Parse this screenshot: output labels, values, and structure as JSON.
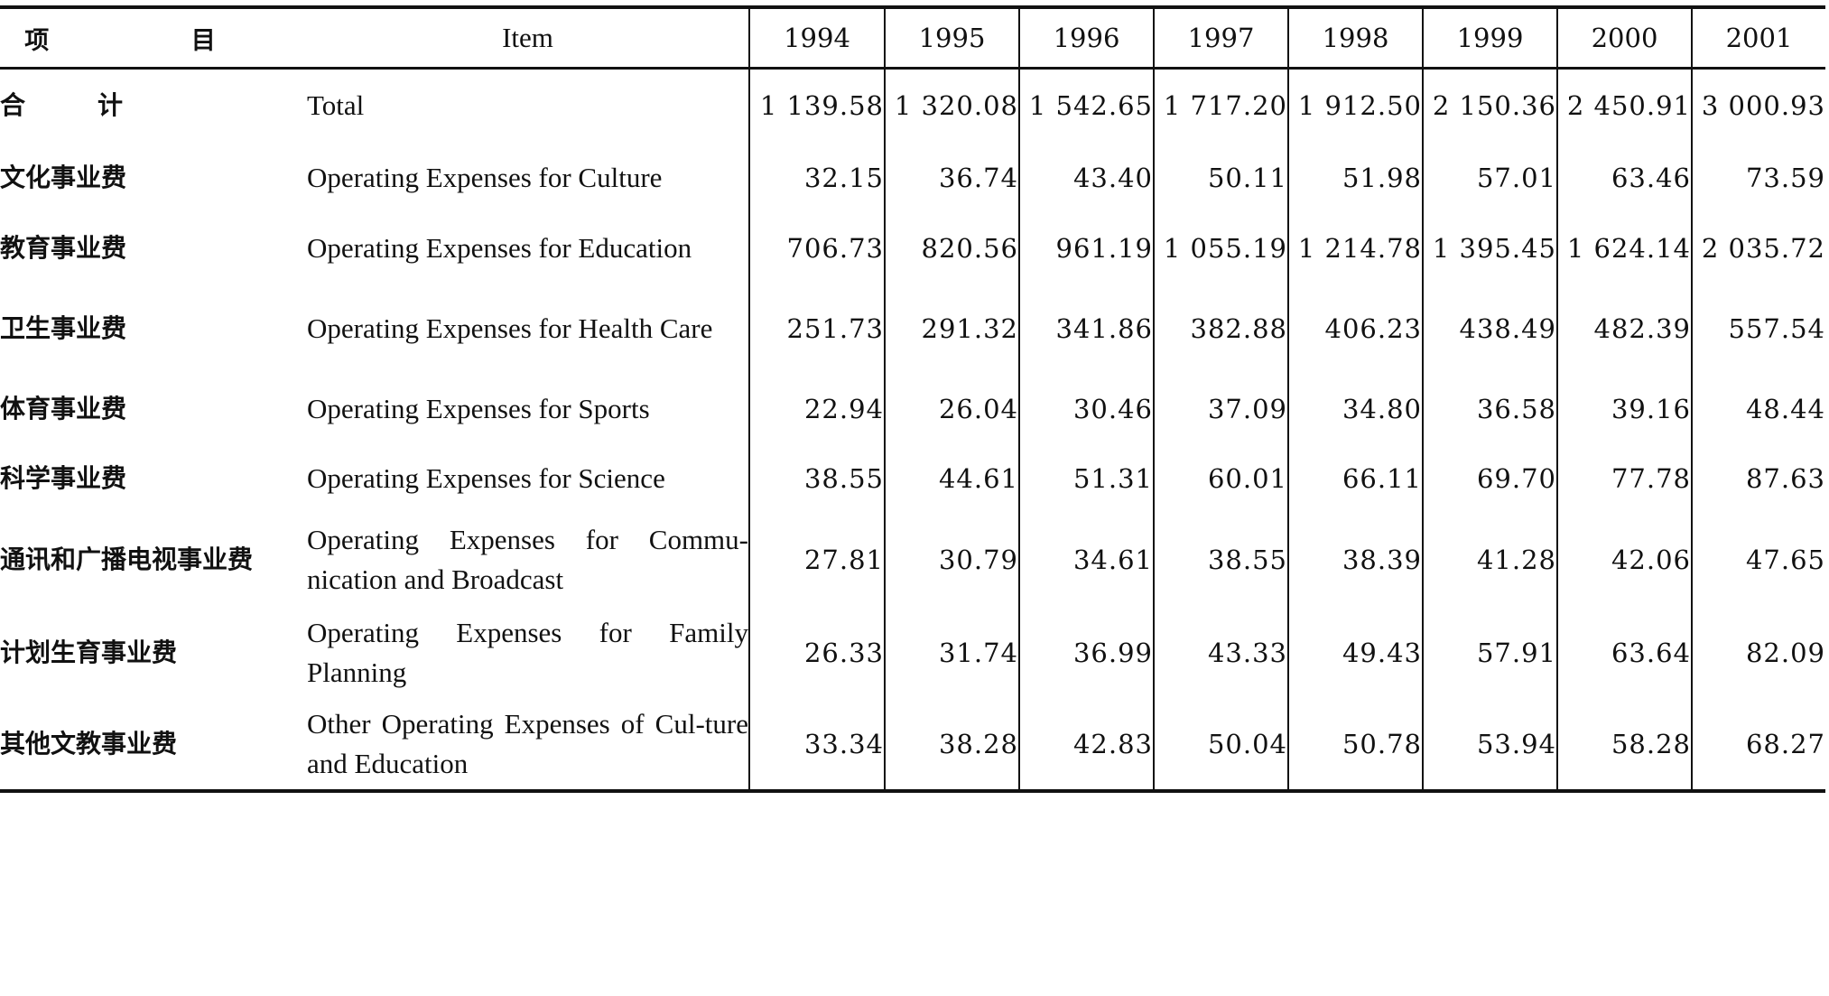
{
  "header": {
    "item_zh": "项 目",
    "item_en": "Item",
    "years": [
      "1994",
      "1995",
      "1996",
      "1997",
      "1998",
      "1999",
      "2000",
      "2001"
    ]
  },
  "rows": [
    {
      "zh": "合计",
      "en": "Total",
      "values": [
        "1 139.58",
        "1 320.08",
        "1 542.65",
        "1 717.20",
        "1 912.50",
        "2 150.36",
        "2 450.91",
        "3 000.93"
      ]
    },
    {
      "zh": "文化事业费",
      "en": "Operating Expenses for Culture",
      "values": [
        "32.15",
        "36.74",
        "43.40",
        "50.11",
        "51.98",
        "57.01",
        "63.46",
        "73.59"
      ]
    },
    {
      "zh": "教育事业费",
      "en": "Operating Expenses for Education",
      "values": [
        "706.73",
        "820.56",
        "961.19",
        "1 055.19",
        "1 214.78",
        "1 395.45",
        "1 624.14",
        "2 035.72"
      ]
    },
    {
      "zh": "卫生事业费",
      "en": "Operating Expenses for Health Care",
      "values": [
        "251.73",
        "291.32",
        "341.86",
        "382.88",
        "406.23",
        "438.49",
        "482.39",
        "557.54"
      ]
    },
    {
      "zh": "体育事业费",
      "en": "Operating Expenses for Sports",
      "values": [
        "22.94",
        "26.04",
        "30.46",
        "37.09",
        "34.80",
        "36.58",
        "39.16",
        "48.44"
      ]
    },
    {
      "zh": "科学事业费",
      "en": "Operating Expenses for Science",
      "values": [
        "38.55",
        "44.61",
        "51.31",
        "60.01",
        "66.11",
        "69.70",
        "77.78",
        "87.63"
      ]
    },
    {
      "zh": "通讯和广播电视事业费",
      "en": "Operating Expenses for Commu-nication and Broadcast",
      "values": [
        "27.81",
        "30.79",
        "34.61",
        "38.55",
        "38.39",
        "41.28",
        "42.06",
        "47.65"
      ]
    },
    {
      "zh": "计划生育事业费",
      "en": "Operating Expenses for Family Planning",
      "values": [
        "26.33",
        "31.74",
        "36.99",
        "43.33",
        "49.43",
        "57.91",
        "63.64",
        "82.09"
      ]
    },
    {
      "zh": "其他文教事业费",
      "en": "Other Operating Expenses of Cul-ture and Education",
      "values": [
        "33.34",
        "38.28",
        "42.83",
        "50.04",
        "50.78",
        "53.94",
        "58.28",
        "68.27"
      ]
    }
  ]
}
